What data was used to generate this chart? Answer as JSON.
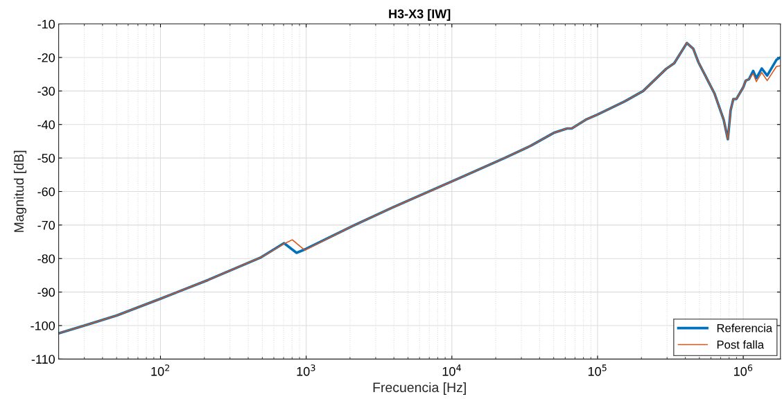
{
  "chart_data": {
    "type": "line",
    "title": "H3-X3 [IW]",
    "xlabel": "Frecuencia [Hz]",
    "ylabel": "Magnitud [dB]",
    "log": "x",
    "grid": true,
    "legend": "bottom right",
    "marker": "none",
    "line_style": "solid",
    "xlim": [
      20,
      1800000
    ],
    "ylim": [
      -110,
      -10
    ],
    "xticks": [
      {
        "value": 100,
        "label": "10$^{2}$"
      },
      {
        "value": 1000,
        "label": "10$^{3}$"
      },
      {
        "value": 10000,
        "label": "10$^{4}$"
      },
      {
        "value": 100000,
        "label": "10$^{5}$"
      },
      {
        "value": 1000000,
        "label": "10$^{6}$"
      }
    ],
    "yticks": [
      -110,
      -100,
      -90,
      -80,
      -70,
      -60,
      -50,
      -40,
      -30,
      -20,
      -10
    ],
    "series": [
      {
        "name": "Referencia",
        "color": "#0072bd",
        "x": [
          20,
          30,
          50,
          100,
          212,
          492,
          705,
          859,
          1000,
          2032,
          3908,
          10000,
          23000,
          35000,
          50000,
          61800,
          66500,
          82800,
          99300,
          153600,
          205600,
          295800,
          336000,
          410000,
          454000,
          492000,
          634000,
          734000,
          784000,
          819000,
          855000,
          897000,
          1000000,
          1040000,
          1095000,
          1170000,
          1230000,
          1340000,
          1460000,
          1690000,
          1780000
        ],
        "values": [
          -102.3,
          -100,
          -97,
          -92,
          -86.4,
          -79.6,
          -75.4,
          -78.3,
          -77.1,
          -70.5,
          -64.8,
          -57,
          -50,
          -46.3,
          -42.5,
          -41.2,
          -41.2,
          -38.6,
          -37.1,
          -33.1,
          -30,
          -23.4,
          -21.7,
          -15.7,
          -17.4,
          -21.4,
          -30.7,
          -38.6,
          -44.4,
          -35.8,
          -32.4,
          -32.4,
          -28.9,
          -26.9,
          -26.5,
          -24,
          -26.2,
          -23.3,
          -25.4,
          -20.7,
          -20.1
        ]
      },
      {
        "name": "Post falla",
        "color": "#d95319",
        "x": [
          20,
          30,
          50,
          100,
          212,
          492,
          705,
          803,
          977,
          2032,
          3908,
          10000,
          23000,
          35000,
          50000,
          61800,
          66500,
          82800,
          99300,
          153600,
          205600,
          295800,
          336000,
          410000,
          454000,
          492000,
          634000,
          734000,
          784000,
          819000,
          855000,
          897000,
          1000000,
          1040000,
          1095000,
          1170000,
          1230000,
          1340000,
          1460000,
          1690000,
          1780000
        ],
        "values": [
          -102.3,
          -100,
          -97,
          -92,
          -86.4,
          -79.6,
          -75.6,
          -74.4,
          -77.5,
          -70.5,
          -64.8,
          -57,
          -50,
          -46.3,
          -42.5,
          -41.2,
          -41.2,
          -38.6,
          -37.1,
          -33.1,
          -30,
          -23.4,
          -21.7,
          -15.7,
          -17.4,
          -21.4,
          -30.7,
          -38.6,
          -44.4,
          -35.8,
          -32.4,
          -32.4,
          -28.9,
          -26.9,
          -26.5,
          -24.8,
          -27.2,
          -24.5,
          -26.9,
          -22.7,
          -22.5
        ]
      }
    ]
  }
}
